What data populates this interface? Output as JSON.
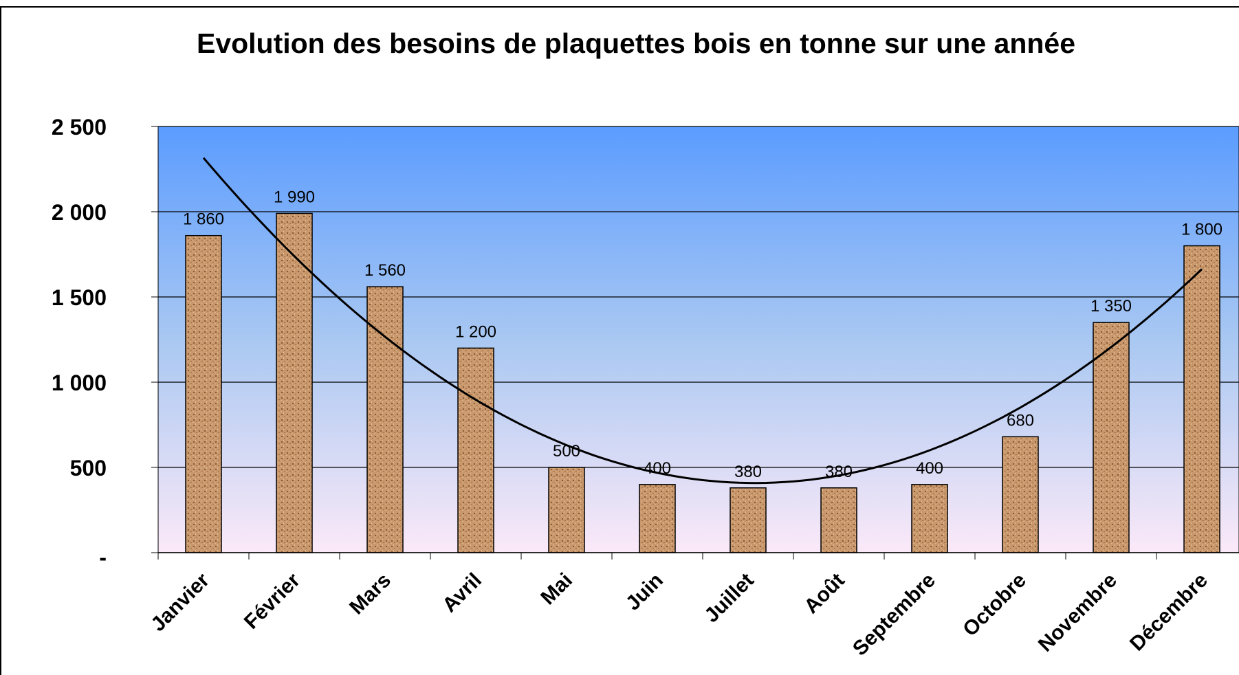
{
  "chart_data": {
    "type": "bar",
    "title": "Evolution des besoins de plaquettes bois en tonne sur une année",
    "categories": [
      "Janvier",
      "Février",
      "Mars",
      "Avril",
      "Mai",
      "Juin",
      "Juillet",
      "Août",
      "Septembre",
      "Octobre",
      "Novembre",
      "Décembre"
    ],
    "values": [
      1860,
      1990,
      1560,
      1200,
      500,
      400,
      380,
      380,
      400,
      680,
      1350,
      1800
    ],
    "value_labels": [
      "1 860",
      "1 990",
      "1 560",
      "1 200",
      "500",
      "400",
      "380",
      "380",
      "400",
      "680",
      "1 350",
      "1 800"
    ],
    "color": "#c8986c",
    "trendline": "polynomial",
    "ylim": [
      0,
      2500
    ],
    "yticks": [
      {
        "value": 0,
        "label": "-"
      },
      500,
      {
        "value": 1000,
        "label": "1 000"
      },
      {
        "value": 1500,
        "label": "1 500"
      },
      {
        "value": 2000,
        "label": "2 000"
      },
      {
        "value": 2500,
        "label": "2 500"
      }
    ],
    "grid": true
  }
}
